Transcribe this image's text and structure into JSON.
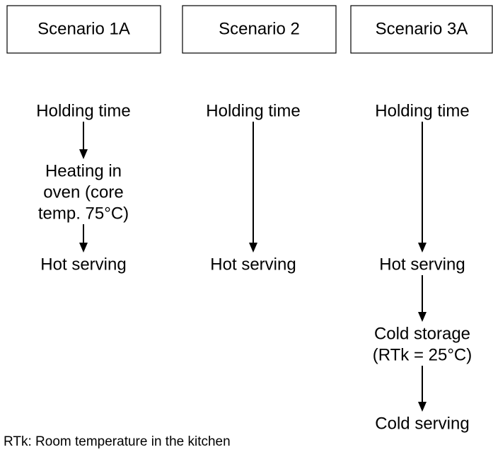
{
  "columns": [
    {
      "title": "Scenario 1A",
      "steps": [
        {
          "lines": [
            "Holding time"
          ]
        },
        {
          "lines": [
            "Heating in",
            "oven (core",
            "temp. 75°C)"
          ]
        },
        {
          "lines": [
            "Hot serving"
          ]
        }
      ]
    },
    {
      "title": "Scenario 2",
      "steps": [
        {
          "lines": [
            "Holding time"
          ]
        },
        {
          "lines": [
            "Hot serving"
          ]
        }
      ]
    },
    {
      "title": "Scenario 3A",
      "steps": [
        {
          "lines": [
            "Holding time"
          ]
        },
        {
          "lines": [
            "Hot serving"
          ]
        },
        {
          "lines": [
            "Cold storage",
            "(RTk = 25°C)"
          ]
        },
        {
          "lines": [
            "Cold serving"
          ]
        }
      ]
    }
  ],
  "footnote": "RTk: Room temperature in the kitchen"
}
